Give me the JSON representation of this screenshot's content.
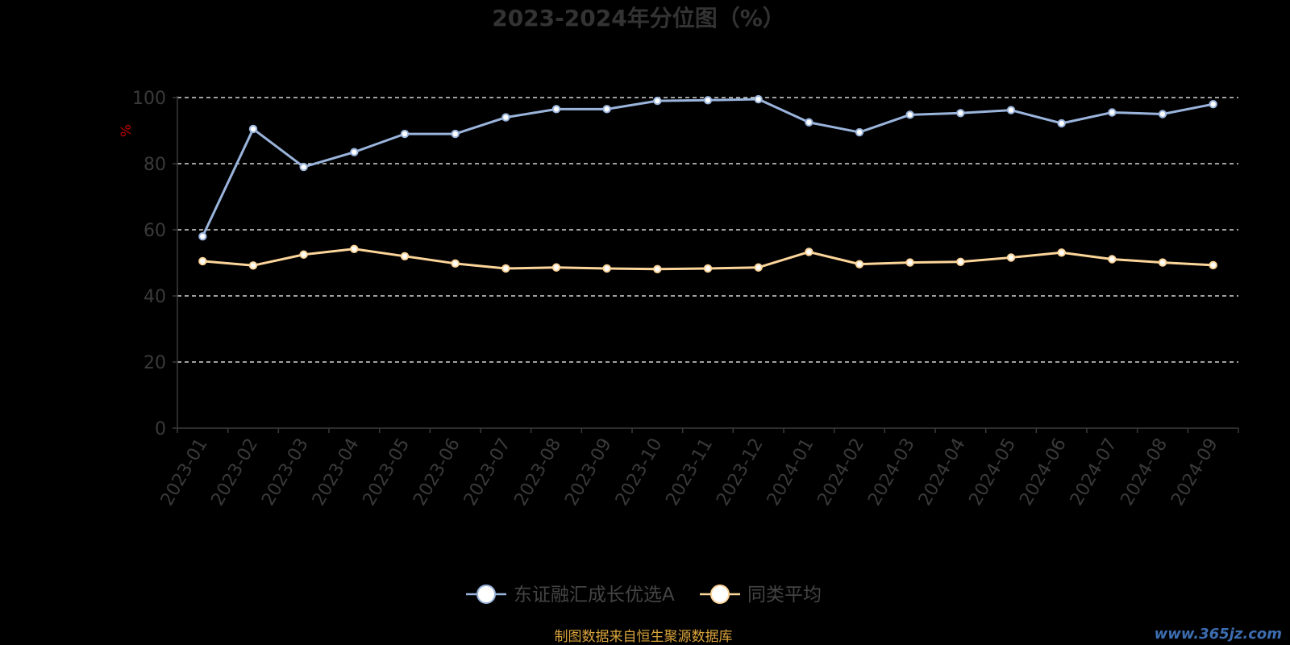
{
  "chart_data": {
    "type": "line",
    "title": "2023-2024年分位图（%）",
    "ylabel": "%",
    "ylim": [
      0,
      100
    ],
    "yticks": [
      0,
      20,
      40,
      60,
      80,
      100
    ],
    "grid": "horizontal-dashed",
    "legend_position": "bottom-center",
    "categories": [
      "2023-01",
      "2023-02",
      "2023-03",
      "2023-04",
      "2023-05",
      "2023-06",
      "2023-07",
      "2023-08",
      "2023-09",
      "2023-10",
      "2023-11",
      "2023-12",
      "2024-01",
      "2024-02",
      "2024-03",
      "2024-04",
      "2024-05",
      "2024-06",
      "2024-07",
      "2024-08",
      "2024-09"
    ],
    "series": [
      {
        "name": "东证融汇成长优选A",
        "color": "#9ab4dc",
        "values": [
          58,
          90.5,
          79,
          83.5,
          89,
          89,
          94,
          96.5,
          96.5,
          99,
          99.2,
          99.5,
          92.5,
          89.5,
          94.8,
          95.3,
          96.2,
          92.2,
          95.5,
          95,
          98
        ]
      },
      {
        "name": "同类平均",
        "color": "#fcd59a",
        "values": [
          50.5,
          49.2,
          52.5,
          54.2,
          52,
          49.8,
          48.3,
          48.6,
          48.3,
          48.1,
          48.3,
          48.6,
          53.3,
          49.6,
          50.1,
          50.3,
          51.6,
          53.1,
          51.1,
          50.1,
          49.3
        ]
      }
    ]
  },
  "source": "制图数据来自恒生聚源数据库",
  "watermark": "www.365jz.com",
  "colors": {
    "background": "#000000",
    "axis": "#3a3a3a",
    "grid": "#ffffff"
  }
}
